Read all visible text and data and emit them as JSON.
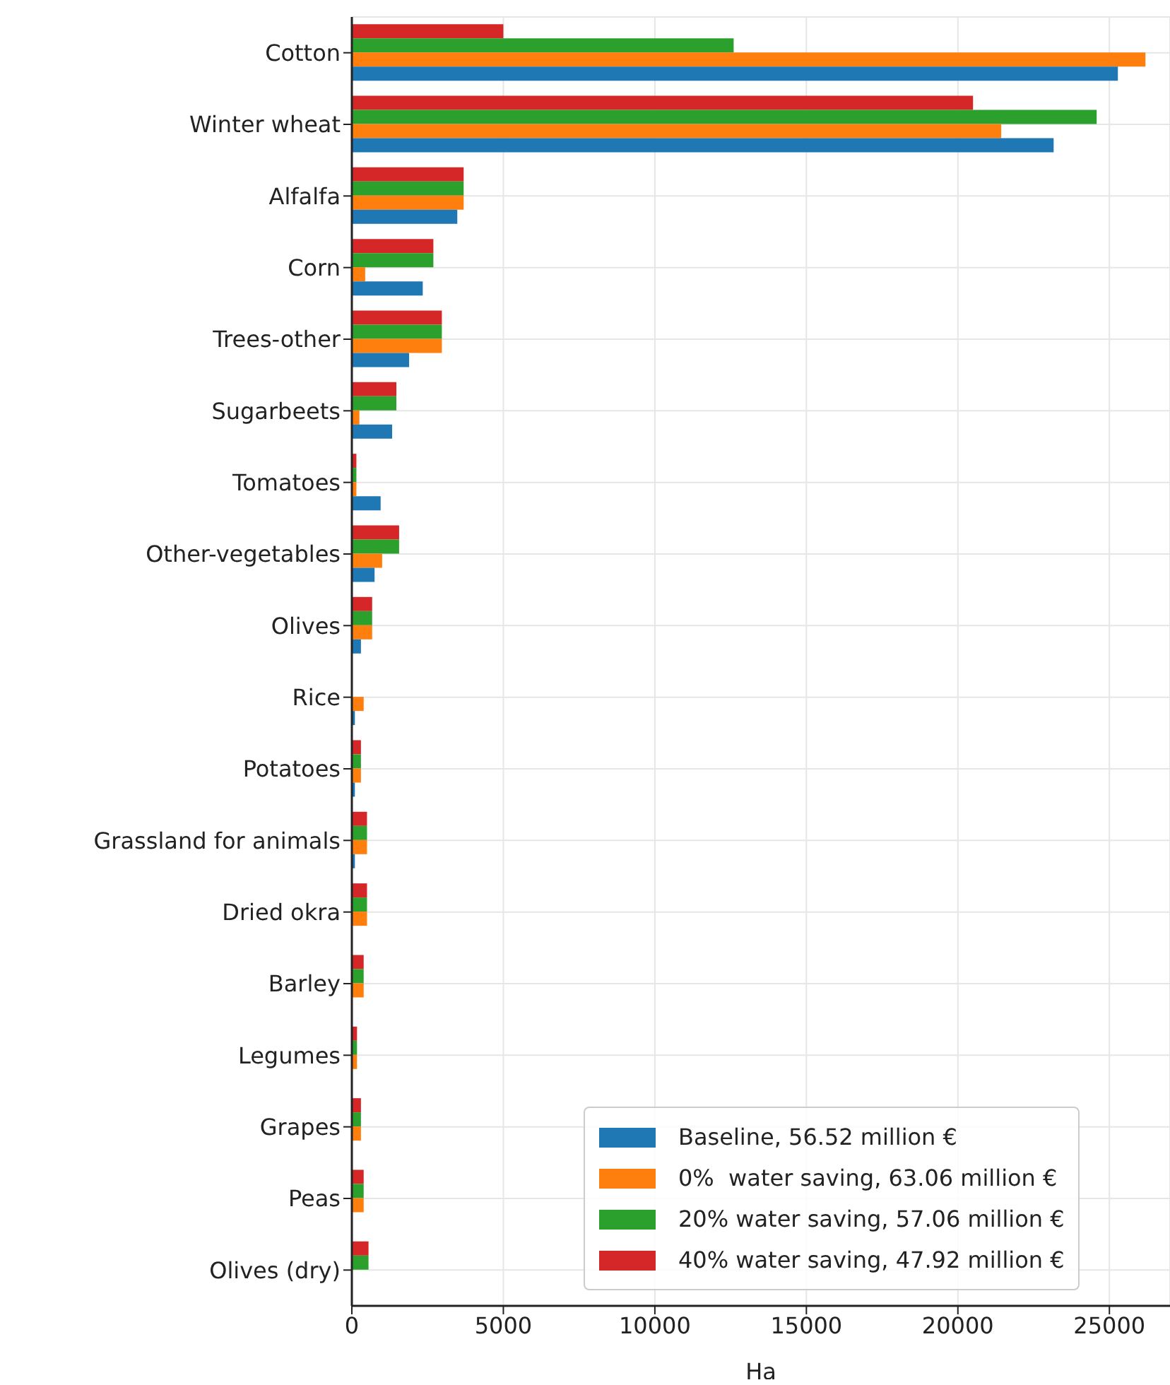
{
  "chart_data": {
    "type": "bar",
    "orientation": "horizontal",
    "xlabel": "Ha",
    "categories": [
      "Cotton",
      "Winter wheat",
      "Alfalfa",
      "Corn",
      "Trees-other",
      "Sugarbeets",
      "Tomatoes",
      "Other-vegetables",
      "Olives",
      "Rice",
      "Potatoes",
      "Grassland for animals",
      "Dried okra",
      "Barley",
      "Legumes",
      "Grapes",
      "Peas",
      "Olives (dry)"
    ],
    "series": [
      {
        "name": "Baseline, 56.52 million €",
        "color": "#1f77b4",
        "values": [
          25280,
          23160,
          3480,
          2340,
          1890,
          1330,
          950,
          750,
          300,
          100,
          100,
          100,
          0,
          0,
          0,
          0,
          0,
          0
        ]
      },
      {
        "name": "0%  water saving, 63.06 million €",
        "color": "#ff7f0e",
        "values": [
          26190,
          21430,
          3690,
          440,
          2970,
          250,
          150,
          1000,
          670,
          390,
          300,
          500,
          500,
          390,
          170,
          300,
          390,
          0
        ]
      },
      {
        "name": "20% water saving, 57.06 million €",
        "color": "#2ca02c",
        "values": [
          12600,
          24580,
          3690,
          2690,
          2970,
          1470,
          150,
          1560,
          670,
          0,
          300,
          500,
          500,
          390,
          170,
          300,
          390,
          550
        ]
      },
      {
        "name": "40% water saving, 47.92 million €",
        "color": "#d62728",
        "values": [
          5000,
          20500,
          3690,
          2690,
          2970,
          1470,
          150,
          1560,
          670,
          0,
          300,
          500,
          500,
          390,
          170,
          300,
          390,
          550
        ]
      }
    ],
    "xlim": [
      0,
      27000
    ],
    "xticks": [
      0,
      5000,
      10000,
      15000,
      20000,
      25000
    ],
    "grid": true,
    "legend": "bottom right"
  }
}
